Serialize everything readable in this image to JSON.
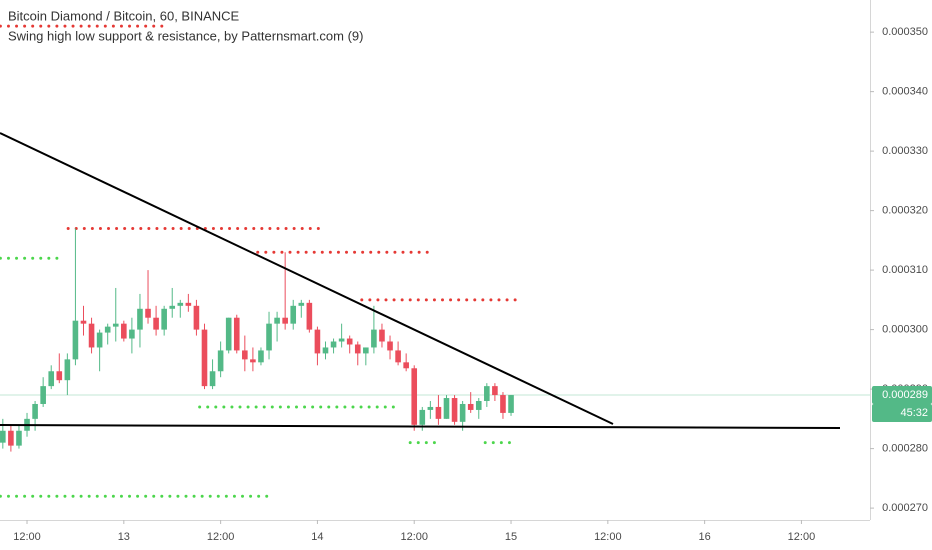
{
  "chart_data": {
    "type": "candlestick",
    "title": "Bitcoin Diamond / Bitcoin, 60, BINANCE",
    "subtitle": "Swing high low support & resistance, by Patternsmart.com (9)",
    "up_color": "#53b987",
    "down_color": "#eb4d5c",
    "x": [
      9,
      10,
      11,
      12,
      13,
      14,
      15,
      16,
      17,
      18,
      19,
      20,
      21,
      22,
      23,
      24,
      25,
      26,
      27,
      28,
      29,
      30,
      31,
      32,
      33,
      34,
      35,
      36,
      37,
      38,
      39,
      40,
      41,
      42,
      43,
      44,
      45,
      46,
      47,
      48,
      49,
      50,
      51,
      52,
      53,
      54,
      55,
      56,
      57,
      58,
      59,
      60,
      61,
      62,
      63,
      64,
      65,
      66,
      67,
      68,
      69,
      70,
      71,
      72
    ],
    "open": [
      0.000281,
      0.000283,
      0.0002805,
      0.000283,
      0.000285,
      0.0002875,
      0.0002905,
      0.000293,
      0.0002915,
      0.000295,
      0.0003015,
      0.000301,
      0.000297,
      0.0002995,
      0.0003005,
      0.000301,
      0.0002985,
      0.0003,
      0.0003035,
      0.000302,
      0.0003,
      0.0003035,
      0.000304,
      0.0003045,
      0.000304,
      0.0003,
      0.0002905,
      0.000293,
      0.0002965,
      0.000302,
      0.0002965,
      0.000295,
      0.0002945,
      0.0002965,
      0.000301,
      0.000302,
      0.000301,
      0.000304,
      0.0003045,
      0.0003,
      0.000296,
      0.000297,
      0.000298,
      0.0002985,
      0.0002975,
      0.000296,
      0.000297,
      0.0003,
      0.000298,
      0.0002965,
      0.0002945,
      0.0002935,
      0.000284,
      0.0002865,
      0.000287,
      0.000285,
      0.0002885,
      0.0002845,
      0.0002875,
      0.0002865,
      0.000288,
      0.0002905,
      0.000289,
      0.000286
    ],
    "high": [
      0.000285,
      0.000284,
      0.000284,
      0.000286,
      0.000288,
      0.000292,
      0.000294,
      0.000296,
      0.000296,
      0.000317,
      0.000304,
      0.000302,
      0.0003,
      0.000301,
      0.000307,
      0.0003015,
      0.000302,
      0.000306,
      0.00031,
      0.000304,
      0.000304,
      0.000307,
      0.000305,
      0.000306,
      0.000305,
      0.000301,
      0.000295,
      0.000298,
      0.000302,
      0.0003025,
      0.000299,
      0.000297,
      0.000297,
      0.000303,
      0.000303,
      0.000313,
      0.000305,
      0.000305,
      0.000305,
      0.0003005,
      0.000298,
      0.0002985,
      0.000301,
      0.000299,
      0.000298,
      0.000297,
      0.000304,
      0.000301,
      0.000299,
      0.000298,
      0.000296,
      0.000294,
      0.000287,
      0.000288,
      0.000289,
      0.000289,
      0.000289,
      0.000288,
      0.0002895,
      0.0002885,
      0.000291,
      0.000291,
      0.0002895,
      0.000289
    ],
    "low": [
      0.00028,
      0.0002795,
      0.00028,
      0.000282,
      0.000283,
      0.000287,
      0.00029,
      0.000291,
      0.000289,
      0.000294,
      0.000299,
      0.000296,
      0.000293,
      0.0002975,
      0.000298,
      0.000298,
      0.000296,
      0.000297,
      0.000301,
      0.000299,
      0.000299,
      0.000302,
      0.000302,
      0.000303,
      0.000299,
      0.00029,
      0.00029,
      0.000292,
      0.000296,
      0.000296,
      0.000293,
      0.000293,
      0.000294,
      0.000295,
      0.000298,
      0.0003,
      0.0003,
      0.000302,
      0.0002995,
      0.000294,
      0.000295,
      0.000296,
      0.000297,
      0.000296,
      0.000294,
      0.000294,
      0.000296,
      0.000297,
      0.000295,
      0.000294,
      0.000293,
      0.000283,
      0.000283,
      0.000285,
      0.000284,
      0.000285,
      0.000284,
      0.000283,
      0.000286,
      0.000285,
      0.000287,
      0.000288,
      0.000285,
      0.0002855
    ],
    "close": [
      0.000283,
      0.0002805,
      0.000283,
      0.000285,
      0.0002875,
      0.0002905,
      0.000293,
      0.0002915,
      0.000295,
      0.0003015,
      0.000301,
      0.000297,
      0.0002995,
      0.0003005,
      0.000301,
      0.0002985,
      0.0003,
      0.0003035,
      0.000302,
      0.0003,
      0.0003035,
      0.000304,
      0.0003045,
      0.000304,
      0.0003,
      0.0002905,
      0.000293,
      0.0002965,
      0.000302,
      0.0002965,
      0.000295,
      0.0002945,
      0.0002965,
      0.000301,
      0.000302,
      0.000301,
      0.000304,
      0.0003045,
      0.0003,
      0.000296,
      0.000297,
      0.000298,
      0.0002985,
      0.0002975,
      0.000296,
      0.000297,
      0.0003,
      0.000298,
      0.0002965,
      0.0002945,
      0.0002935,
      0.000284,
      0.0002865,
      0.000287,
      0.000285,
      0.0002885,
      0.0002845,
      0.0002875,
      0.0002865,
      0.000288,
      0.0002905,
      0.000289,
      0.000286,
      0.000289
    ],
    "levels": [
      {
        "value": 0.000351,
        "x": [
          8.7,
          29.1
        ],
        "color": "#e53935"
      },
      {
        "value": 0.000317,
        "x": [
          17.1,
          48.9
        ],
        "color": "#e53935"
      },
      {
        "value": 0.000313,
        "x": [
          40.6,
          61.9
        ],
        "color": "#e53935"
      },
      {
        "value": 0.000305,
        "x": [
          53.5,
          73.1
        ],
        "color": "#e53935"
      },
      {
        "value": 0.000312,
        "x": [
          8.7,
          16.7
        ],
        "color": "#4cd64c"
      },
      {
        "value": 0.000287,
        "x": [
          33.4,
          58.2
        ],
        "color": "#4cd64c"
      },
      {
        "value": 0.000281,
        "x": [
          59.5,
          63.2
        ],
        "color": "#4cd64c"
      },
      {
        "value": 0.000281,
        "x": [
          68.8,
          72.7
        ],
        "color": "#4cd64c"
      },
      {
        "value": 0.000272,
        "x": [
          8.7,
          42.1
        ],
        "color": "#4cd64c"
      }
    ],
    "last_price": {
      "value": 0.000289,
      "label": "0.000289"
    },
    "countdown": "45:32",
    "xlim": [
      8.65,
      116.5
    ],
    "ylim": [
      0.000268,
      0.0003554
    ],
    "xticks": [
      {
        "value": 12,
        "label": "12:00"
      },
      {
        "value": 24,
        "label": "13"
      },
      {
        "value": 36,
        "label": "12:00"
      },
      {
        "value": 48,
        "label": "14"
      },
      {
        "value": 60,
        "label": "12:00"
      },
      {
        "value": 72,
        "label": "15"
      },
      {
        "value": 84,
        "label": "12:00"
      },
      {
        "value": 96,
        "label": "16"
      },
      {
        "value": 108,
        "label": "12:00"
      }
    ],
    "yticks": [
      {
        "value": 0.00027,
        "label": "0.000270"
      },
      {
        "value": 0.00028,
        "label": "0.000280"
      },
      {
        "value": 0.00029,
        "label": "0.000290"
      },
      {
        "value": 0.0003,
        "label": "0.000300"
      },
      {
        "value": 0.00031,
        "label": "0.000310"
      },
      {
        "value": 0.00032,
        "label": "0.000320"
      },
      {
        "value": 0.00033,
        "label": "0.000330"
      },
      {
        "value": 0.00034,
        "label": "0.000340"
      },
      {
        "value": 0.00035,
        "label": "0.000350"
      }
    ]
  }
}
